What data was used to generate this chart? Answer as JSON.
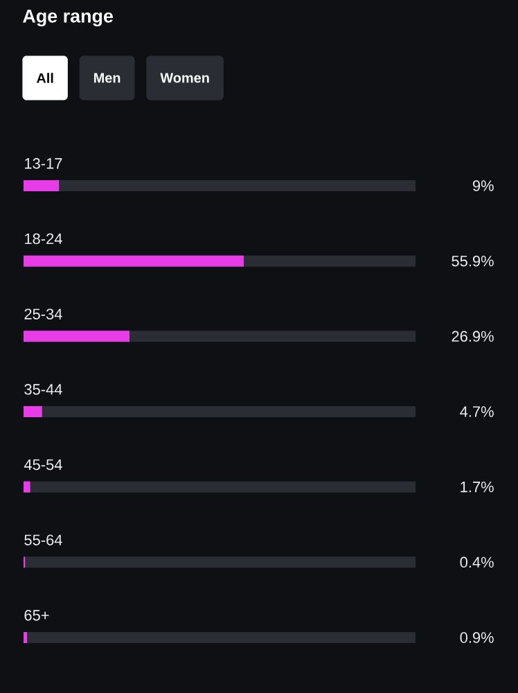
{
  "chart_data": {
    "type": "bar",
    "orientation": "horizontal",
    "title": "Age range",
    "annotations": [
      "All",
      "Men",
      "Women"
    ],
    "categories": [
      "13-17",
      "18-24",
      "25-34",
      "35-44",
      "45-54",
      "55-64",
      "65+"
    ],
    "series": [
      {
        "color": "#e83ce8",
        "values": [
          9,
          55.9,
          26.9,
          4.7,
          1.7,
          0.4,
          0.9
        ],
        "value_labels": [
          "9%",
          "55.9%",
          "26.9%",
          "4.7%",
          "1.7%",
          "0.4%",
          "0.9%"
        ]
      }
    ]
  }
}
